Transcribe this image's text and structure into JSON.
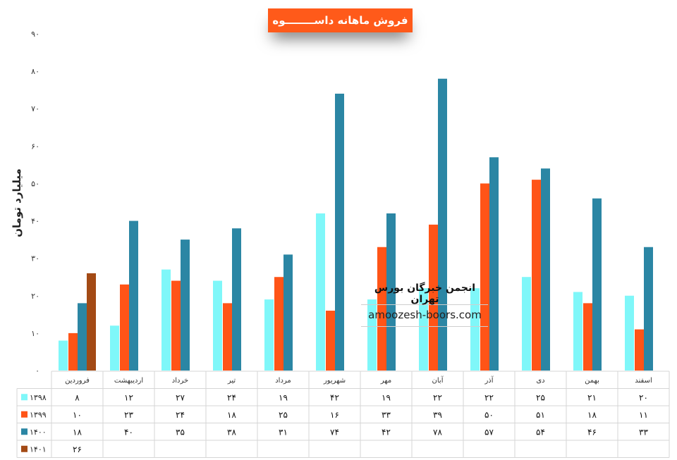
{
  "chart_data": {
    "type": "bar",
    "title": "فروش ماهانه داســــــــوه",
    "ylabel": "میلیارد تومان",
    "ylim": [
      0,
      90
    ],
    "yticks": [
      "۰",
      "۱۰",
      "۲۰",
      "۳۰",
      "۴۰",
      "۵۰",
      "۶۰",
      "۷۰",
      "۸۰",
      "۹۰"
    ],
    "ytick_values": [
      0,
      10,
      20,
      30,
      40,
      50,
      60,
      70,
      80,
      90
    ],
    "grid": false,
    "legend": "table-left",
    "categories": [
      "فروردین",
      "اردیبهشت",
      "خرداد",
      "تیر",
      "مرداد",
      "شهریور",
      "مهر",
      "آبان",
      "آذر",
      "دی",
      "بهمن",
      "اسفند"
    ],
    "series": [
      {
        "name": "۱۳۹۸",
        "color": "#7ff7f9",
        "values": [
          8,
          12,
          27,
          24,
          19,
          42,
          19,
          22,
          22,
          25,
          21,
          20
        ],
        "labels": [
          "۸",
          "۱۲",
          "۲۷",
          "۲۴",
          "۱۹",
          "۴۲",
          "۱۹",
          "۲۲",
          "۲۲",
          "۲۵",
          "۲۱",
          "۲۰"
        ]
      },
      {
        "name": "۱۳۹۹",
        "color": "#ff5417",
        "values": [
          10,
          23,
          24,
          18,
          25,
          16,
          33,
          39,
          50,
          51,
          18,
          11
        ],
        "labels": [
          "۱۰",
          "۲۳",
          "۲۴",
          "۱۸",
          "۲۵",
          "۱۶",
          "۳۳",
          "۳۹",
          "۵۰",
          "۵۱",
          "۱۸",
          "۱۱"
        ]
      },
      {
        "name": "۱۴۰۰",
        "color": "#2b86a4",
        "values": [
          18,
          40,
          35,
          38,
          31,
          74,
          42,
          78,
          57,
          54,
          46,
          33
        ],
        "labels": [
          "۱۸",
          "۴۰",
          "۳۵",
          "۳۸",
          "۳۱",
          "۷۴",
          "۴۲",
          "۷۸",
          "۵۷",
          "۵۴",
          "۴۶",
          "۳۳"
        ]
      },
      {
        "name": "۱۴۰۱",
        "color": "#a34a15",
        "values": [
          26,
          null,
          null,
          null,
          null,
          null,
          null,
          null,
          null,
          null,
          null,
          null
        ],
        "labels": [
          "۲۶",
          "",
          "",
          "",
          "",
          "",
          "",
          "",
          "",
          "",
          "",
          ""
        ]
      }
    ]
  },
  "watermark": {
    "line1": "انجمن خبرگان بورس تهران",
    "line2": "amoozesh-boors.com"
  }
}
